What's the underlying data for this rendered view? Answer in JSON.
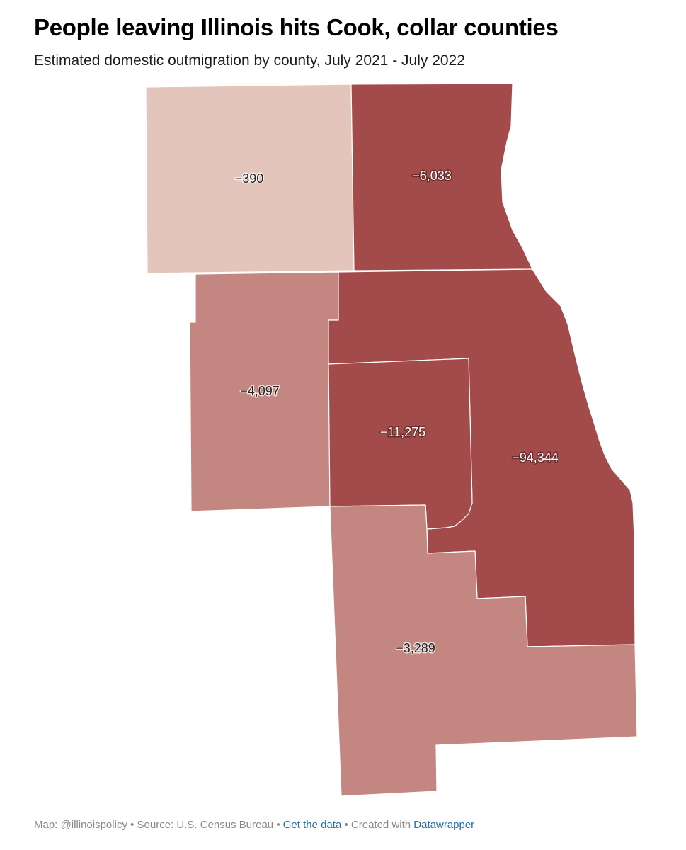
{
  "header": {
    "title": "People leaving Illinois hits Cook, collar counties",
    "subtitle": "Estimated domestic outmigration by county, July 2021 - July 2022"
  },
  "map": {
    "colors": {
      "lightest": "#e3c5bb",
      "medium": "#c48680",
      "darkest": "#a34b4b"
    },
    "regions": [
      {
        "label": "−390",
        "value": -390,
        "color": "#e3c5bb"
      },
      {
        "label": "−6,033",
        "value": -6033,
        "color": "#a34b4b"
      },
      {
        "label": "−4,097",
        "value": -4097,
        "color": "#c48680"
      },
      {
        "label": "−11,275",
        "value": -11275,
        "color": "#a34b4b"
      },
      {
        "label": "−94,344",
        "value": -94344,
        "color": "#a34b4b"
      },
      {
        "label": "−3,289",
        "value": -3289,
        "color": "#c48680"
      }
    ]
  },
  "footer": {
    "map_credit": "Map: @illinoispolicy",
    "separator": " • ",
    "source": "Source: U.S. Census Bureau",
    "get_data": "Get the data",
    "created_with": "Created with",
    "datawrapper": "Datawrapper"
  }
}
